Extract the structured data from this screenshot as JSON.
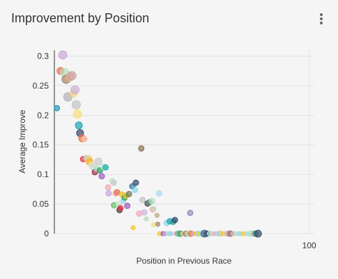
{
  "card": {
    "title": "Improvement by Position",
    "menu_icon": "more-vert-icon"
  },
  "chart_data": {
    "type": "scatter",
    "title": "Improvement by Position",
    "xlabel": "Position in Previous Race",
    "ylabel": "Average Improve",
    "xlim": [
      0,
      102
    ],
    "ylim": [
      0,
      0.31
    ],
    "x_ticks": [
      {
        "value": 100,
        "label": "100"
      }
    ],
    "y_ticks": [
      {
        "value": 0,
        "label": "0"
      },
      {
        "value": 0.05,
        "label": "0.05"
      },
      {
        "value": 0.1,
        "label": "0.1"
      },
      {
        "value": 0.15,
        "label": "0.15"
      },
      {
        "value": 0.2,
        "label": "0.2"
      },
      {
        "value": 0.25,
        "label": "0.25"
      },
      {
        "value": 0.3,
        "label": "0.3"
      }
    ],
    "grid": true,
    "legend": "none",
    "points": [
      {
        "x": 1,
        "y": 0.212,
        "r": 4,
        "color": "#1f9ab7"
      },
      {
        "x": 2.4,
        "y": 0.275,
        "r": 5,
        "color": "#e8744a"
      },
      {
        "x": 3.3,
        "y": 0.302,
        "r": 6,
        "color": "#c9a9d6"
      },
      {
        "x": 4.1,
        "y": 0.272,
        "r": 6,
        "color": "#b7dfc3"
      },
      {
        "x": 4.6,
        "y": 0.261,
        "r": 6,
        "color": "#a08a6e"
      },
      {
        "x": 5.3,
        "y": 0.231,
        "r": 6,
        "color": "#b3b3b3"
      },
      {
        "x": 6.1,
        "y": 0.265,
        "r": 6,
        "color": "#f2a88a"
      },
      {
        "x": 6.9,
        "y": 0.267,
        "r": 6,
        "color": "#c7a8a8"
      },
      {
        "x": 7.6,
        "y": 0.237,
        "r": 5,
        "color": "#f7d57a"
      },
      {
        "x": 8.1,
        "y": 0.243,
        "r": 6,
        "color": "#cfb0d9"
      },
      {
        "x": 8.6,
        "y": 0.218,
        "r": 6,
        "color": "#c4c4c4"
      },
      {
        "x": 9.1,
        "y": 0.202,
        "r": 6,
        "color": "#f8e07a"
      },
      {
        "x": 9.6,
        "y": 0.183,
        "r": 5,
        "color": "#18a7b5"
      },
      {
        "x": 10.1,
        "y": 0.17,
        "r": 5,
        "color": "#3b4a6b"
      },
      {
        "x": 10.9,
        "y": 0.161,
        "r": 5,
        "color": "#e8744a"
      },
      {
        "x": 11.9,
        "y": 0.16,
        "r": 4,
        "color": "#f7c3a8"
      },
      {
        "x": 11.3,
        "y": 0.126,
        "r": 4,
        "color": "#e03b4a"
      },
      {
        "x": 12.6,
        "y": 0.128,
        "r": 4,
        "color": "#b7dfc3"
      },
      {
        "x": 13.4,
        "y": 0.126,
        "r": 5,
        "color": "#f5c98a"
      },
      {
        "x": 13.9,
        "y": 0.121,
        "r": 5,
        "color": "#f1b233"
      },
      {
        "x": 14.6,
        "y": 0.116,
        "r": 4,
        "color": "#f6e4a8"
      },
      {
        "x": 15.2,
        "y": 0.113,
        "r": 5,
        "color": "#c8d8e0"
      },
      {
        "x": 15.9,
        "y": 0.104,
        "r": 4,
        "color": "#9c2c44"
      },
      {
        "x": 16.6,
        "y": 0.11,
        "r": 4,
        "color": "#b7dfc3"
      },
      {
        "x": 17.3,
        "y": 0.122,
        "r": 5,
        "color": "#c9c9c9"
      },
      {
        "x": 17.9,
        "y": 0.107,
        "r": 4,
        "color": "#2f9e6a"
      },
      {
        "x": 18.6,
        "y": 0.097,
        "r": 4,
        "color": "#a05cc4"
      },
      {
        "x": 19.3,
        "y": 0.113,
        "r": 4,
        "color": "#c4e8cf"
      },
      {
        "x": 20.1,
        "y": 0.112,
        "r": 4,
        "color": "#18b4a5"
      },
      {
        "x": 21.1,
        "y": 0.078,
        "r": 4,
        "color": "#f2a8bc"
      },
      {
        "x": 21.3,
        "y": 0.068,
        "r": 4,
        "color": "#c4a8e0"
      },
      {
        "x": 22.7,
        "y": 0.089,
        "r": 4,
        "color": "#c4e8cf"
      },
      {
        "x": 23.3,
        "y": 0.086,
        "r": 4,
        "color": "#c9c9c9"
      },
      {
        "x": 24.1,
        "y": 0.068,
        "r": 4,
        "color": "#f8a8a8"
      },
      {
        "x": 24.6,
        "y": 0.07,
        "r": 4,
        "color": "#e8744a"
      },
      {
        "x": 23.4,
        "y": 0.048,
        "r": 4,
        "color": "#6cbd6c"
      },
      {
        "x": 25.3,
        "y": 0.05,
        "r": 4,
        "color": "#c4e8cf"
      },
      {
        "x": 25.6,
        "y": 0.04,
        "r": 4,
        "color": "#3a3a3a"
      },
      {
        "x": 25.9,
        "y": 0.043,
        "r": 4,
        "color": "#e03b4a"
      },
      {
        "x": 26.6,
        "y": 0.066,
        "r": 4,
        "color": "#e8c024"
      },
      {
        "x": 27.1,
        "y": 0.056,
        "r": 4,
        "color": "#a2d8f0"
      },
      {
        "x": 27.6,
        "y": 0.061,
        "r": 4,
        "color": "#2f9e6a"
      },
      {
        "x": 28.1,
        "y": 0.064,
        "r": 4,
        "color": "#e8c024"
      },
      {
        "x": 28.6,
        "y": 0.047,
        "r": 4,
        "color": "#a05cc4"
      },
      {
        "x": 29.3,
        "y": 0.067,
        "r": 4,
        "color": "#6b7b5e"
      },
      {
        "x": 30.6,
        "y": 0.08,
        "r": 4,
        "color": "#2d7aa8"
      },
      {
        "x": 31.6,
        "y": 0.074,
        "r": 4,
        "color": "#8ad8e8"
      },
      {
        "x": 32.0,
        "y": 0.086,
        "r": 4,
        "color": "#3b4a6b"
      },
      {
        "x": 30.9,
        "y": 0.01,
        "r": 3,
        "color": "#f8c820"
      },
      {
        "x": 33.3,
        "y": 0.034,
        "r": 4,
        "color": "#f2a8bc"
      },
      {
        "x": 34.1,
        "y": 0.144,
        "r": 4,
        "color": "#8b7355"
      },
      {
        "x": 34.6,
        "y": 0.057,
        "r": 4,
        "color": "#c4c4c4"
      },
      {
        "x": 35.3,
        "y": 0.036,
        "r": 4,
        "color": "#c9b8e0"
      },
      {
        "x": 36.1,
        "y": 0.025,
        "r": 3,
        "color": "#b7dfc3"
      },
      {
        "x": 36.6,
        "y": 0.051,
        "r": 4,
        "color": "#4a4a4a"
      },
      {
        "x": 37.3,
        "y": 0.053,
        "r": 4,
        "color": "#5a9a78"
      },
      {
        "x": 38.3,
        "y": 0.055,
        "r": 4,
        "color": "#b7dfc3"
      },
      {
        "x": 38.6,
        "y": 0.041,
        "r": 4,
        "color": "#f8a8a8"
      },
      {
        "x": 39.1,
        "y": 0.042,
        "r": 3,
        "color": "#b7dfc3"
      },
      {
        "x": 38.9,
        "y": 0.015,
        "r": 3,
        "color": "#f8e07a"
      },
      {
        "x": 40.6,
        "y": 0.016,
        "r": 3,
        "color": "#a08a6e"
      },
      {
        "x": 40.3,
        "y": 0.031,
        "r": 3,
        "color": "#c0a890"
      },
      {
        "x": 41.1,
        "y": 0.068,
        "r": 4,
        "color": "#a8dcf0"
      },
      {
        "x": 41.3,
        "y": 0.0,
        "r": 3,
        "color": "#f8c820"
      },
      {
        "x": 42.1,
        "y": 0.0,
        "r": 3,
        "color": "#f8e07a"
      },
      {
        "x": 42.6,
        "y": 0.0,
        "r": 3,
        "color": "#a05cc4"
      },
      {
        "x": 43.6,
        "y": 0.0,
        "r": 3,
        "color": "#c4a8e0"
      },
      {
        "x": 44.1,
        "y": 0.018,
        "r": 4,
        "color": "#8ad8e8"
      },
      {
        "x": 44.9,
        "y": 0.0,
        "r": 3,
        "color": "#b7dfc3"
      },
      {
        "x": 45.3,
        "y": 0.021,
        "r": 4,
        "color": "#18a7b5"
      },
      {
        "x": 45.6,
        "y": 0.0,
        "r": 3,
        "color": "#8ad8e8"
      },
      {
        "x": 46.6,
        "y": 0.02,
        "r": 4,
        "color": "#2f9e8a"
      },
      {
        "x": 47.3,
        "y": 0.023,
        "r": 4,
        "color": "#2d4a78"
      },
      {
        "x": 47.6,
        "y": 0.0,
        "r": 3,
        "color": "#f2a8bc"
      },
      {
        "x": 48.6,
        "y": 0.0,
        "r": 4,
        "color": "#6cbd8c"
      },
      {
        "x": 49.6,
        "y": 0.0,
        "r": 4,
        "color": "#2f9e6a"
      },
      {
        "x": 50.3,
        "y": 0.0,
        "r": 3,
        "color": "#f5c98a"
      },
      {
        "x": 51.6,
        "y": 0.0,
        "r": 4,
        "color": "#a08a6e"
      },
      {
        "x": 52.6,
        "y": 0.0,
        "r": 4,
        "color": "#b7dfc3"
      },
      {
        "x": 53.3,
        "y": 0.035,
        "r": 4,
        "color": "#9a8ab8"
      },
      {
        "x": 53.6,
        "y": 0.0,
        "r": 4,
        "color": "#e8744a"
      },
      {
        "x": 54.6,
        "y": 0.0,
        "r": 3,
        "color": "#f2a8bc"
      },
      {
        "x": 55.6,
        "y": 0.0,
        "r": 3,
        "color": "#e8c024"
      },
      {
        "x": 56.3,
        "y": 0.0,
        "r": 4,
        "color": "#a2d8f0"
      },
      {
        "x": 57.1,
        "y": 0.0,
        "r": 3,
        "color": "#f8c820"
      },
      {
        "x": 58.1,
        "y": 0.0,
        "r": 4,
        "color": "#8ad8e8"
      },
      {
        "x": 58.9,
        "y": 0.0,
        "r": 5,
        "color": "#4a6a8a"
      },
      {
        "x": 59.9,
        "y": 0.0,
        "r": 4,
        "color": "#3b4a6b"
      },
      {
        "x": 61.1,
        "y": 0.0,
        "r": 4,
        "color": "#b7dfc3"
      },
      {
        "x": 62.6,
        "y": 0.0,
        "r": 3,
        "color": "#f2a8bc"
      },
      {
        "x": 63.9,
        "y": 0.0,
        "r": 3,
        "color": "#8ad8e8"
      },
      {
        "x": 65.1,
        "y": 0.0,
        "r": 4,
        "color": "#c4c4c4"
      },
      {
        "x": 66.1,
        "y": 0.0,
        "r": 3,
        "color": "#f8c820"
      },
      {
        "x": 67.1,
        "y": 0.0,
        "r": 3,
        "color": "#f5c98a"
      },
      {
        "x": 68.1,
        "y": 0.0,
        "r": 4,
        "color": "#c4a8e0"
      },
      {
        "x": 69.1,
        "y": 0.0,
        "r": 4,
        "color": "#8b7355"
      },
      {
        "x": 70.1,
        "y": 0.0,
        "r": 3,
        "color": "#f2a8bc"
      },
      {
        "x": 71.1,
        "y": 0.0,
        "r": 3,
        "color": "#b7dfc3"
      },
      {
        "x": 72.6,
        "y": 0.0,
        "r": 3,
        "color": "#8ad8e8"
      },
      {
        "x": 74.1,
        "y": 0.0,
        "r": 3,
        "color": "#f8c820"
      },
      {
        "x": 75.6,
        "y": 0.0,
        "r": 3,
        "color": "#a2d8f0"
      },
      {
        "x": 76.9,
        "y": 0.0,
        "r": 4,
        "color": "#b7dfc3"
      },
      {
        "x": 77.9,
        "y": 0.0,
        "r": 4,
        "color": "#c4c4c4"
      },
      {
        "x": 78.9,
        "y": 0.0,
        "r": 4,
        "color": "#2f9e6a"
      },
      {
        "x": 79.9,
        "y": 0.0,
        "r": 5,
        "color": "#3b4a6b"
      }
    ]
  }
}
